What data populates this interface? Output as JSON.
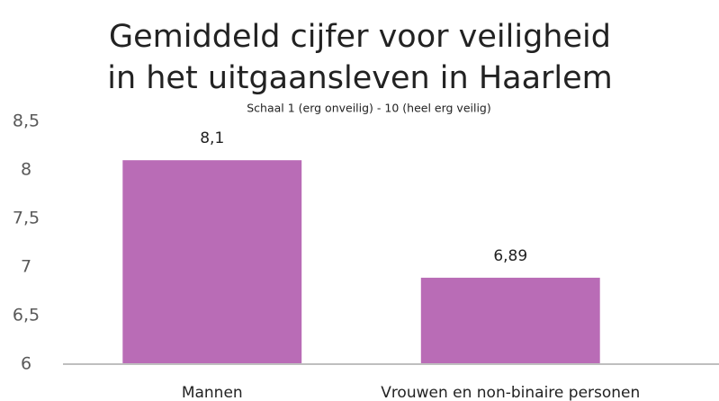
{
  "chart_data": {
    "type": "bar",
    "title": [
      "Gemiddeld cijfer voor veiligheid",
      "in het uitgaansleven in Haarlem"
    ],
    "subtitle": "Schaal 1 (erg onveilig) - 10 (heel erg veilig)",
    "categories": [
      "Mannen",
      "Vrouwen en non-binaire personen"
    ],
    "values": [
      8.1,
      6.89
    ],
    "value_labels": [
      "8,1",
      "6,89"
    ],
    "color": "#b96cb6",
    "ylim": [
      6,
      8.5
    ],
    "yticks": [
      {
        "value": 6,
        "label": "6"
      },
      {
        "value": 6.5,
        "label": "6,5"
      },
      {
        "value": 7,
        "label": "7"
      },
      {
        "value": 7.5,
        "label": "7,5"
      },
      {
        "value": 8,
        "label": "8"
      },
      {
        "value": 8.5,
        "label": "8,5"
      }
    ],
    "grid": false
  }
}
